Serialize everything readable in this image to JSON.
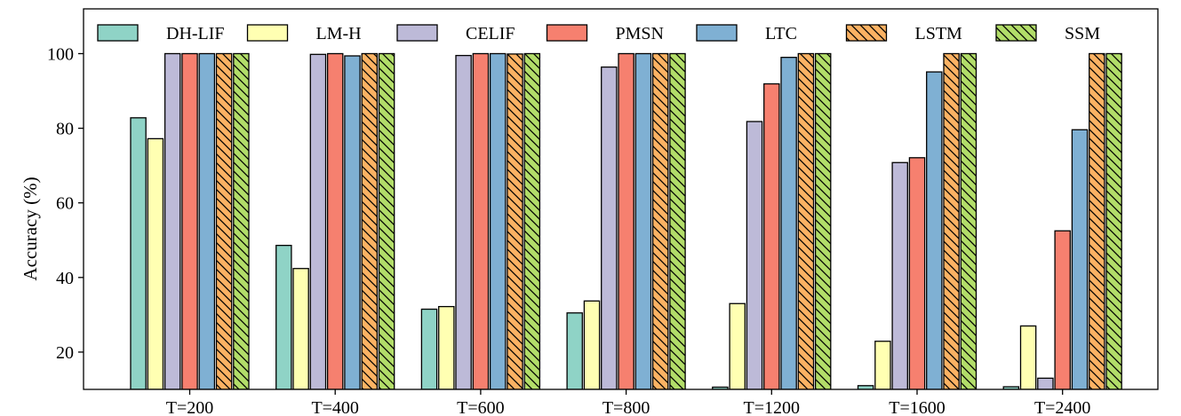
{
  "chart_data": {
    "type": "bar",
    "title": "",
    "xlabel": "",
    "ylabel": "Accuracy (%)",
    "ylim": [
      10,
      112
    ],
    "yticks": [
      20,
      40,
      60,
      80,
      100
    ],
    "grid": false,
    "legend_position": "top",
    "categories": [
      "T=200",
      "T=400",
      "T=600",
      "T=800",
      "T=1200",
      "T=1600",
      "T=2400"
    ],
    "series": [
      {
        "name": "DH-LIF",
        "color": "#8fd3c6",
        "hatch": "none",
        "values": [
          82.8,
          48.6,
          31.5,
          30.5,
          10.6,
          11.0,
          10.7
        ]
      },
      {
        "name": "LM-H",
        "color": "#ffffb2",
        "hatch": "none",
        "values": [
          77.2,
          42.4,
          32.2,
          33.7,
          33.0,
          22.9,
          27.0
        ]
      },
      {
        "name": "CELIF",
        "color": "#bdbad8",
        "hatch": "none",
        "values": [
          100.0,
          99.8,
          99.5,
          96.4,
          81.8,
          70.8,
          13.0
        ]
      },
      {
        "name": "PMSN",
        "color": "#f6806f",
        "hatch": "none",
        "values": [
          100.0,
          100.0,
          100.0,
          100.0,
          91.9,
          72.1,
          52.5
        ]
      },
      {
        "name": "LTC",
        "color": "#7fb0d3",
        "hatch": "none",
        "values": [
          100.0,
          99.4,
          100.0,
          100.0,
          99.0,
          95.1,
          79.6
        ]
      },
      {
        "name": "LSTM",
        "color": "#fbb263",
        "hatch": "backslash",
        "values": [
          100.0,
          100.0,
          99.9,
          100.0,
          100.0,
          100.0,
          100.0
        ]
      },
      {
        "name": "SSM",
        "color": "#b2dd69",
        "hatch": "backslash",
        "values": [
          100.0,
          100.0,
          100.0,
          100.0,
          100.0,
          100.0,
          100.0
        ]
      }
    ]
  }
}
